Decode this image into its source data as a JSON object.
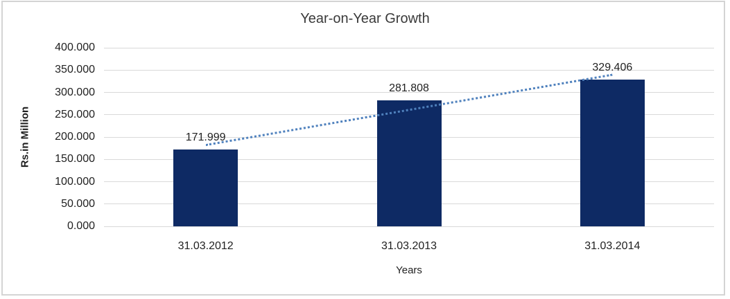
{
  "chart_data": {
    "type": "bar",
    "title": "Year-on-Year Growth",
    "xlabel": "Years",
    "ylabel": "Rs.in Million",
    "categories": [
      "31.03.2012",
      "31.03.2013",
      "31.03.2014"
    ],
    "values": [
      171.999,
      281.808,
      329.406
    ],
    "value_labels": [
      "171.999",
      "281.808",
      "329.406"
    ],
    "ylim": [
      0,
      400
    ],
    "ytick_step": 50,
    "ytick_labels": [
      "0.000",
      "50.000",
      "100.000",
      "150.000",
      "200.000",
      "250.000",
      "300.000",
      "350.000",
      "400.000"
    ],
    "grid": true,
    "legend": false,
    "trendline": {
      "type": "linear",
      "style": "dotted",
      "endpoint_values": [
        182.367,
        339.774
      ]
    },
    "colors": {
      "bar": "#0e2a64",
      "trendline": "#4f81bd",
      "gridline": "#d9d9d9",
      "text": "#1f1f1f"
    }
  }
}
